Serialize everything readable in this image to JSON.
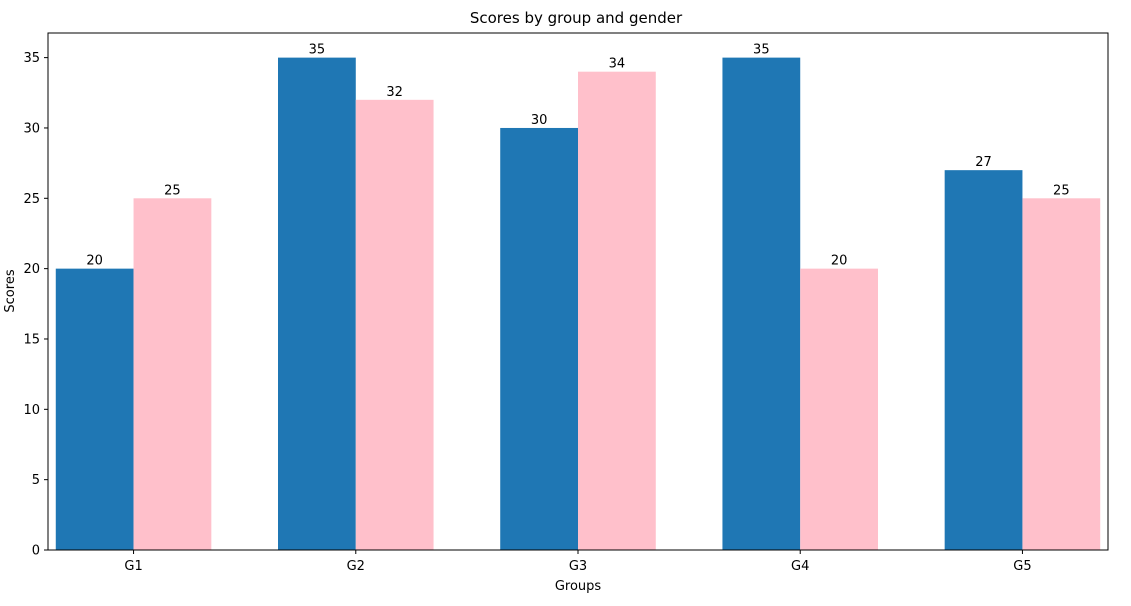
{
  "chart_data": {
    "type": "bar",
    "title": "Scores by group and gender",
    "xlabel": "Groups",
    "ylabel": "Scores",
    "categories": [
      "G1",
      "G2",
      "G3",
      "G4",
      "G5"
    ],
    "series": [
      {
        "values": [
          20,
          35,
          30,
          35,
          27
        ],
        "color": "#1f77b4"
      },
      {
        "values": [
          25,
          32,
          34,
          20,
          25
        ],
        "color": "#ffc0cb"
      }
    ],
    "ylim": [
      0,
      36.75
    ],
    "yticks": [
      0,
      5,
      10,
      15,
      20,
      25,
      30,
      35
    ],
    "grid": false,
    "legend": "none"
  }
}
